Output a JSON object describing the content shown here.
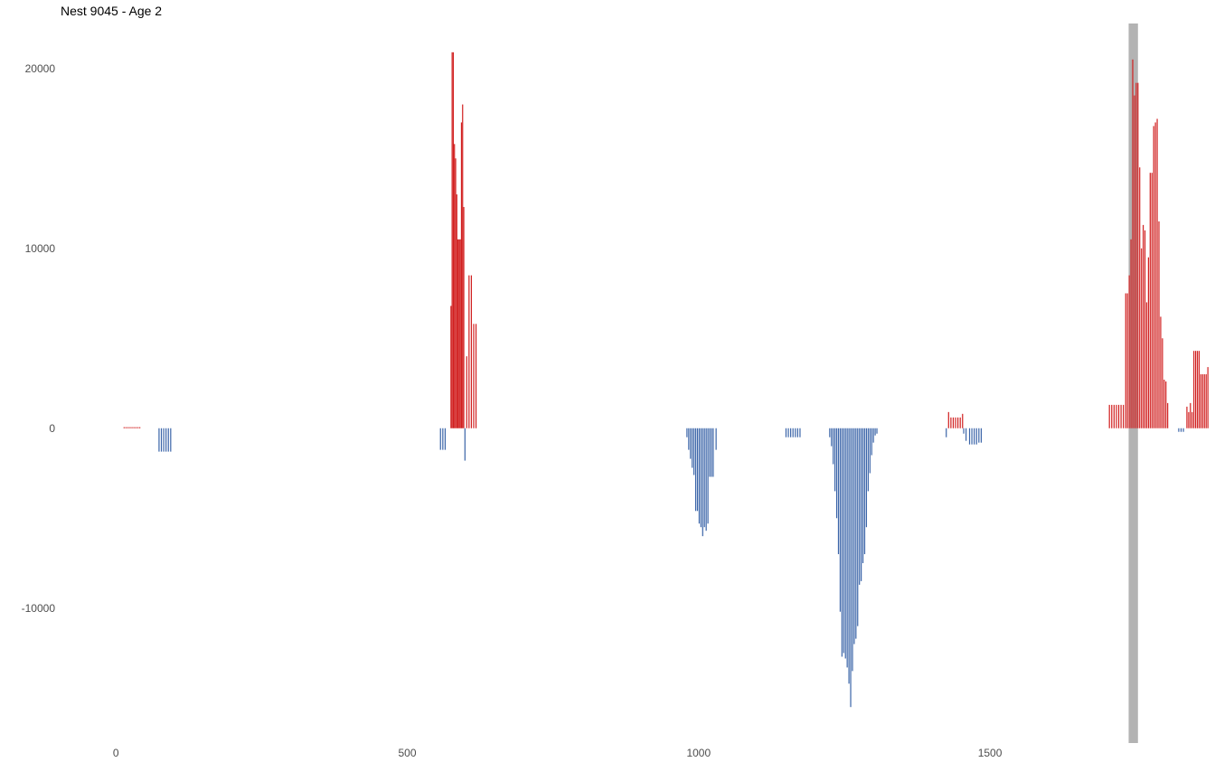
{
  "chart_data": {
    "type": "bar",
    "title": "Nest 9045 - Age 2",
    "xlabel": "",
    "ylabel": "",
    "xlim": [
      -95,
      1880
    ],
    "ylim": [
      -17500,
      22500
    ],
    "x_ticks": [
      {
        "value": 0,
        "label": "0"
      },
      {
        "value": 500,
        "label": "500"
      },
      {
        "value": 1000,
        "label": "1000"
      },
      {
        "value": 1500,
        "label": "1500"
      }
    ],
    "y_ticks": [
      {
        "value": 20000,
        "label": "20000"
      },
      {
        "value": 10000,
        "label": "10000"
      },
      {
        "value": 0,
        "label": "0"
      },
      {
        "value": -10000,
        "label": "-10000"
      }
    ],
    "grid": false,
    "legend": "none",
    "colors": {
      "positive": "#d11f1f",
      "negative": "#3a64a8",
      "highlight": "#b3b3b3"
    },
    "highlight_band": {
      "x_start": 1738,
      "x_end": 1754
    },
    "series": [
      {
        "name": "",
        "points": [
          [
            14,
            60
          ],
          [
            17,
            60
          ],
          [
            20,
            60
          ],
          [
            23,
            60
          ],
          [
            26,
            60
          ],
          [
            29,
            60
          ],
          [
            32,
            60
          ],
          [
            35,
            60
          ],
          [
            38,
            60
          ],
          [
            41,
            60
          ],
          [
            74,
            -1300
          ],
          [
            78,
            -1300
          ],
          [
            82,
            -1300
          ],
          [
            86,
            -1300
          ],
          [
            90,
            -1300
          ],
          [
            94,
            -1300
          ],
          [
            557,
            -1200
          ],
          [
            561,
            -1200
          ],
          [
            565,
            -1200
          ],
          [
            575,
            6800
          ],
          [
            577,
            20900
          ],
          [
            579,
            20900
          ],
          [
            581,
            15800
          ],
          [
            583,
            15000
          ],
          [
            585,
            13000
          ],
          [
            587,
            10500
          ],
          [
            589,
            10500
          ],
          [
            591,
            10500
          ],
          [
            593,
            17000
          ],
          [
            595,
            18000
          ],
          [
            597,
            12300
          ],
          [
            599,
            -1800
          ],
          [
            602,
            4000
          ],
          [
            606,
            8500
          ],
          [
            610,
            8500
          ],
          [
            614,
            5800
          ],
          [
            618,
            5800
          ],
          [
            980,
            -500
          ],
          [
            983,
            -1200
          ],
          [
            986,
            -1700
          ],
          [
            989,
            -2200
          ],
          [
            992,
            -2600
          ],
          [
            995,
            -4600
          ],
          [
            998,
            -4600
          ],
          [
            1001,
            -5300
          ],
          [
            1004,
            -5500
          ],
          [
            1007,
            -6000
          ],
          [
            1010,
            -5500
          ],
          [
            1013,
            -5700
          ],
          [
            1016,
            -5300
          ],
          [
            1019,
            -2700
          ],
          [
            1022,
            -2700
          ],
          [
            1025,
            -2700
          ],
          [
            1030,
            -1200
          ],
          [
            1150,
            -500
          ],
          [
            1154,
            -500
          ],
          [
            1158,
            -500
          ],
          [
            1162,
            -500
          ],
          [
            1166,
            -500
          ],
          [
            1170,
            -500
          ],
          [
            1174,
            -500
          ],
          [
            1225,
            -500
          ],
          [
            1228,
            -1000
          ],
          [
            1231,
            -2000
          ],
          [
            1234,
            -3500
          ],
          [
            1237,
            -5000
          ],
          [
            1240,
            -7000
          ],
          [
            1243,
            -10200
          ],
          [
            1246,
            -12700
          ],
          [
            1249,
            -12500
          ],
          [
            1252,
            -12800
          ],
          [
            1255,
            -13300
          ],
          [
            1258,
            -14200
          ],
          [
            1261,
            -15500
          ],
          [
            1264,
            -13500
          ],
          [
            1267,
            -12000
          ],
          [
            1270,
            -11700
          ],
          [
            1273,
            -11000
          ],
          [
            1276,
            -8700
          ],
          [
            1279,
            -8500
          ],
          [
            1282,
            -7500
          ],
          [
            1285,
            -7000
          ],
          [
            1288,
            -5500
          ],
          [
            1291,
            -3500
          ],
          [
            1294,
            -2500
          ],
          [
            1297,
            -1500
          ],
          [
            1300,
            -800
          ],
          [
            1303,
            -400
          ],
          [
            1306,
            -300
          ],
          [
            1425,
            -500
          ],
          [
            1429,
            900
          ],
          [
            1433,
            600
          ],
          [
            1437,
            600
          ],
          [
            1441,
            600
          ],
          [
            1445,
            600
          ],
          [
            1449,
            600
          ],
          [
            1453,
            800
          ],
          [
            1455,
            -300
          ],
          [
            1459,
            -700
          ],
          [
            1465,
            -900
          ],
          [
            1469,
            -900
          ],
          [
            1473,
            -900
          ],
          [
            1477,
            -900
          ],
          [
            1481,
            -800
          ],
          [
            1485,
            -800
          ],
          [
            1705,
            1300
          ],
          [
            1709,
            1300
          ],
          [
            1713,
            1300
          ],
          [
            1717,
            1300
          ],
          [
            1721,
            1300
          ],
          [
            1725,
            1300
          ],
          [
            1729,
            1300
          ],
          [
            1733,
            7500
          ],
          [
            1736,
            7500
          ],
          [
            1739,
            8500
          ],
          [
            1742,
            10500
          ],
          [
            1745,
            20500
          ],
          [
            1748,
            18500
          ],
          [
            1751,
            19200
          ],
          [
            1754,
            19200
          ],
          [
            1757,
            14500
          ],
          [
            1760,
            10000
          ],
          [
            1763,
            11300
          ],
          [
            1766,
            11000
          ],
          [
            1769,
            7000
          ],
          [
            1772,
            9500
          ],
          [
            1775,
            14200
          ],
          [
            1778,
            14200
          ],
          [
            1781,
            16800
          ],
          [
            1784,
            17000
          ],
          [
            1787,
            17200
          ],
          [
            1790,
            11500
          ],
          [
            1793,
            6200
          ],
          [
            1796,
            5000
          ],
          [
            1799,
            2700
          ],
          [
            1802,
            2600
          ],
          [
            1805,
            1400
          ],
          [
            1824,
            -200
          ],
          [
            1828,
            -200
          ],
          [
            1832,
            -200
          ],
          [
            1838,
            1200
          ],
          [
            1841,
            900
          ],
          [
            1844,
            1400
          ],
          [
            1847,
            900
          ],
          [
            1850,
            4300
          ],
          [
            1853,
            4300
          ],
          [
            1856,
            4300
          ],
          [
            1859,
            4300
          ],
          [
            1862,
            3000
          ],
          [
            1865,
            3000
          ],
          [
            1868,
            3000
          ],
          [
            1871,
            3000
          ],
          [
            1874,
            3400
          ]
        ]
      }
    ]
  }
}
